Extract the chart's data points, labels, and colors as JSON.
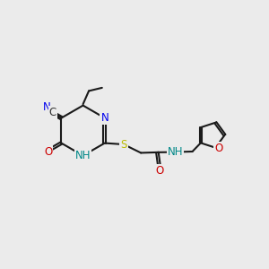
{
  "bg_color": "#ebebeb",
  "bond_color": "#1a1a1a",
  "bond_width": 1.5,
  "font_size": 8.5,
  "atom_colors": {
    "N": "#0000ee",
    "O": "#cc0000",
    "S": "#bbbb00",
    "C": "#1a1a1a",
    "NH_color": "#008888"
  },
  "fig_w": 3.0,
  "fig_h": 3.0,
  "dpi": 100
}
